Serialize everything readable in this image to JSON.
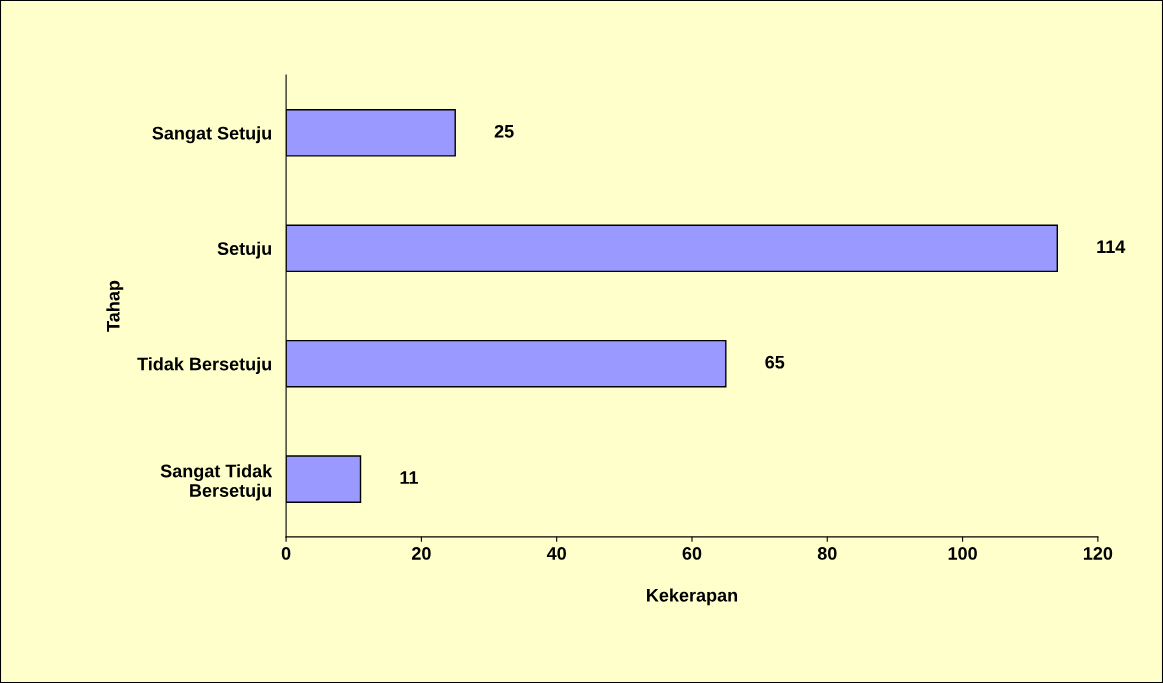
{
  "chart_data": {
    "type": "bar",
    "orientation": "horizontal",
    "categories": [
      "Sangat Setuju",
      "Setuju",
      "Tidak Bersetuju",
      "Sangat Tidak\nBersetuju"
    ],
    "values": [
      25,
      114,
      65,
      11
    ],
    "color": "#9999ff",
    "xlabel": "Kekerapan",
    "ylabel": "Tahap",
    "xlim": [
      0,
      120
    ],
    "xticks": [
      0,
      20,
      40,
      60,
      80,
      100,
      120
    ],
    "data_labels": true,
    "grid": false,
    "legend": false
  }
}
